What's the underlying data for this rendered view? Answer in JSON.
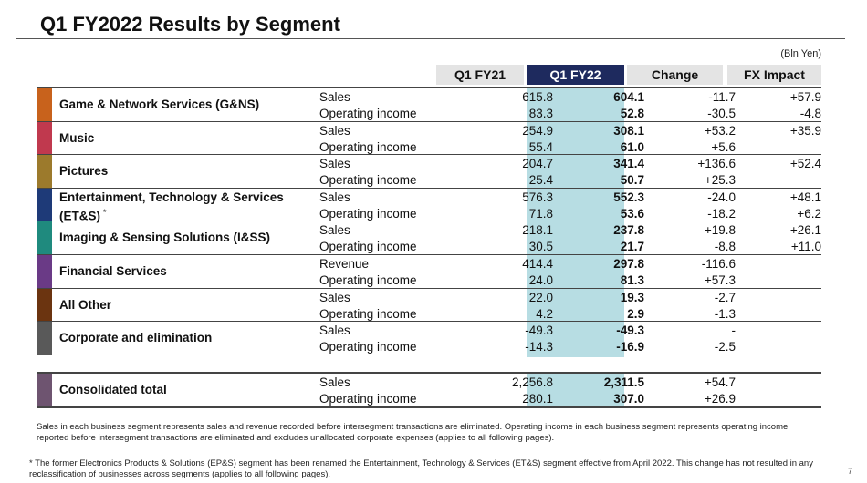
{
  "title": "Q1 FY2022 Results by Segment",
  "unit": "(Bln Yen)",
  "headers": {
    "fy21": "Q1 FY21",
    "fy22": "Q1 FY22",
    "change": "Change",
    "fx": "FX Impact"
  },
  "segments": [
    {
      "name": "Game & Network Services (G&NS)",
      "color": "#c8621c",
      "rows": [
        {
          "label": "Sales",
          "fy21": "615.8",
          "fy22": "604.1",
          "change": "-11.7",
          "fx": "+57.9"
        },
        {
          "label": "Operating income",
          "fy21": "83.3",
          "fy22": "52.8",
          "change": "-30.5",
          "fx": "-4.8"
        }
      ]
    },
    {
      "name": "Music",
      "color": "#c0394e",
      "rows": [
        {
          "label": "Sales",
          "fy21": "254.9",
          "fy22": "308.1",
          "change": "+53.2",
          "fx": "+35.9"
        },
        {
          "label": "Operating income",
          "fy21": "55.4",
          "fy22": "61.0",
          "change": "+5.6",
          "fx": ""
        }
      ]
    },
    {
      "name": "Pictures",
      "color": "#9c7a2c",
      "rows": [
        {
          "label": "Sales",
          "fy21": "204.7",
          "fy22": "341.4",
          "change": "+136.6",
          "fx": "+52.4"
        },
        {
          "label": "Operating income",
          "fy21": "25.4",
          "fy22": "50.7",
          "change": "+25.3",
          "fx": ""
        }
      ]
    },
    {
      "name": "Entertainment, Technology & Services",
      "name2": "(ET&S)",
      "mark": "*",
      "color": "#1e3a78",
      "rows": [
        {
          "label": "Sales",
          "fy21": "576.3",
          "fy22": "552.3",
          "change": "-24.0",
          "fx": "+48.1"
        },
        {
          "label": "Operating income",
          "fy21": "71.8",
          "fy22": "53.6",
          "change": "-18.2",
          "fx": "+6.2"
        }
      ]
    },
    {
      "name": "Imaging & Sensing Solutions (I&SS)",
      "color": "#1f8a7e",
      "rows": [
        {
          "label": "Sales",
          "fy21": "218.1",
          "fy22": "237.8",
          "change": "+19.8",
          "fx": "+26.1"
        },
        {
          "label": "Operating income",
          "fy21": "30.5",
          "fy22": "21.7",
          "change": "-8.8",
          "fx": "+11.0"
        }
      ]
    },
    {
      "name": "Financial Services",
      "color": "#6a3a86",
      "rows": [
        {
          "label": "Revenue",
          "fy21": "414.4",
          "fy22": "297.8",
          "change": "-116.6",
          "fx": ""
        },
        {
          "label": "Operating income",
          "fy21": "24.0",
          "fy22": "81.3",
          "change": "+57.3",
          "fx": ""
        }
      ]
    },
    {
      "name": "All Other",
      "color": "#6b3410",
      "rows": [
        {
          "label": "Sales",
          "fy21": "22.0",
          "fy22": "19.3",
          "change": "-2.7",
          "fx": ""
        },
        {
          "label": "Operating income",
          "fy21": "4.2",
          "fy22": "2.9",
          "change": "-1.3",
          "fx": ""
        }
      ]
    },
    {
      "name": "Corporate and elimination",
      "color": "#595959",
      "rows": [
        {
          "label": "Sales",
          "fy21": "-49.3",
          "fy22": "-49.3",
          "change": "-",
          "fx": ""
        },
        {
          "label": "Operating income",
          "fy21": "-14.3",
          "fy22": "-16.9",
          "change": "-2.5",
          "fx": ""
        }
      ]
    }
  ],
  "total": {
    "name": "Consolidated total",
    "color": "#6e5470",
    "rows": [
      {
        "label": "Sales",
        "fy21": "2,256.8",
        "fy22": "2,311.5",
        "change": "+54.7",
        "fx": ""
      },
      {
        "label": "Operating income",
        "fy21": "280.1",
        "fy22": "307.0",
        "change": "+26.9",
        "fx": ""
      }
    ]
  },
  "notes": {
    "note1": "Sales in each business segment represents sales and revenue recorded before intersegment transactions are eliminated. Operating income in each business segment represents operating income reported before intersegment transactions are eliminated and excludes unallocated corporate expenses (applies to all following pages).",
    "note2_mark": "*",
    "note2": "The former Electronics Products & Solutions (EP&S) segment has been renamed the Entertainment, Technology & Services (ET&S) segment effective from April 2022. This change has not resulted in any reclassification of businesses across segments (applies to all following pages)."
  },
  "page_number": "7"
}
